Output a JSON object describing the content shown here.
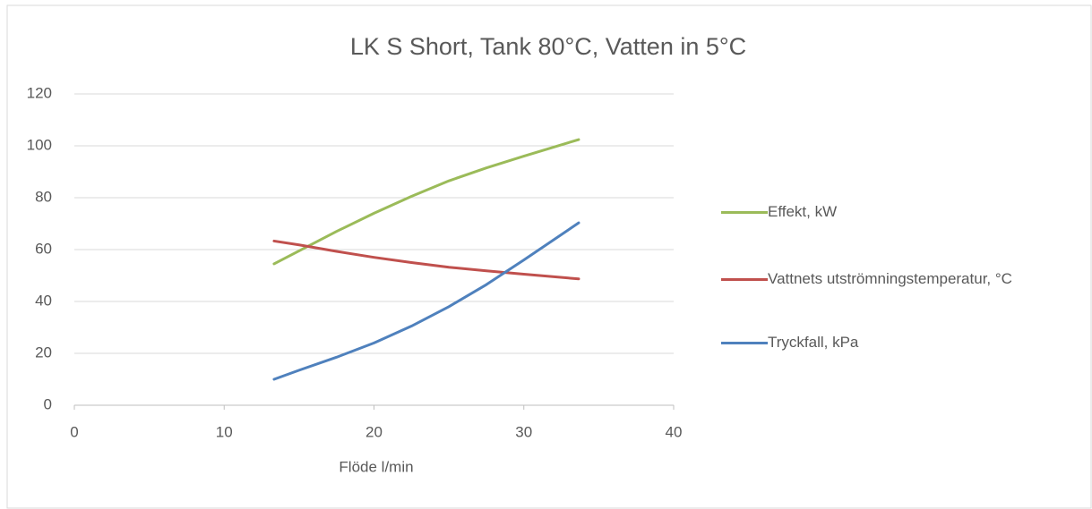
{
  "chart_data": {
    "type": "line",
    "title": "LK S Short,  Tank 80°C, Vatten in 5°C",
    "x_label": "Flöde l/min",
    "x": [
      13.33,
      15,
      17.5,
      20,
      22.5,
      25,
      27.5,
      30,
      33.66
    ],
    "series": [
      {
        "name": "Effekt, kW",
        "color": "#9bbb59",
        "values": [
          54.5,
          59.5,
          67,
          74,
          80.5,
          86.5,
          91.5,
          96,
          102.4
        ]
      },
      {
        "name": "Vattnets utströmningstemperatur, °C",
        "color": "#c0504d",
        "values": [
          63.3,
          61.8,
          59.3,
          57,
          55,
          53.2,
          51.8,
          50.5,
          48.7
        ]
      },
      {
        "name": "Tryckfall, kPa",
        "color": "#4f81bd",
        "values": [
          10,
          13.5,
          18.5,
          24,
          30.5,
          38,
          46.5,
          56,
          70.3
        ]
      }
    ],
    "xlim": [
      0,
      40
    ],
    "xticks": [
      0,
      10,
      20,
      30,
      40
    ],
    "ylim": [
      0,
      120
    ],
    "yticks": [
      0,
      20,
      40,
      60,
      80,
      100,
      120
    ],
    "grid": true,
    "legend": "right"
  }
}
